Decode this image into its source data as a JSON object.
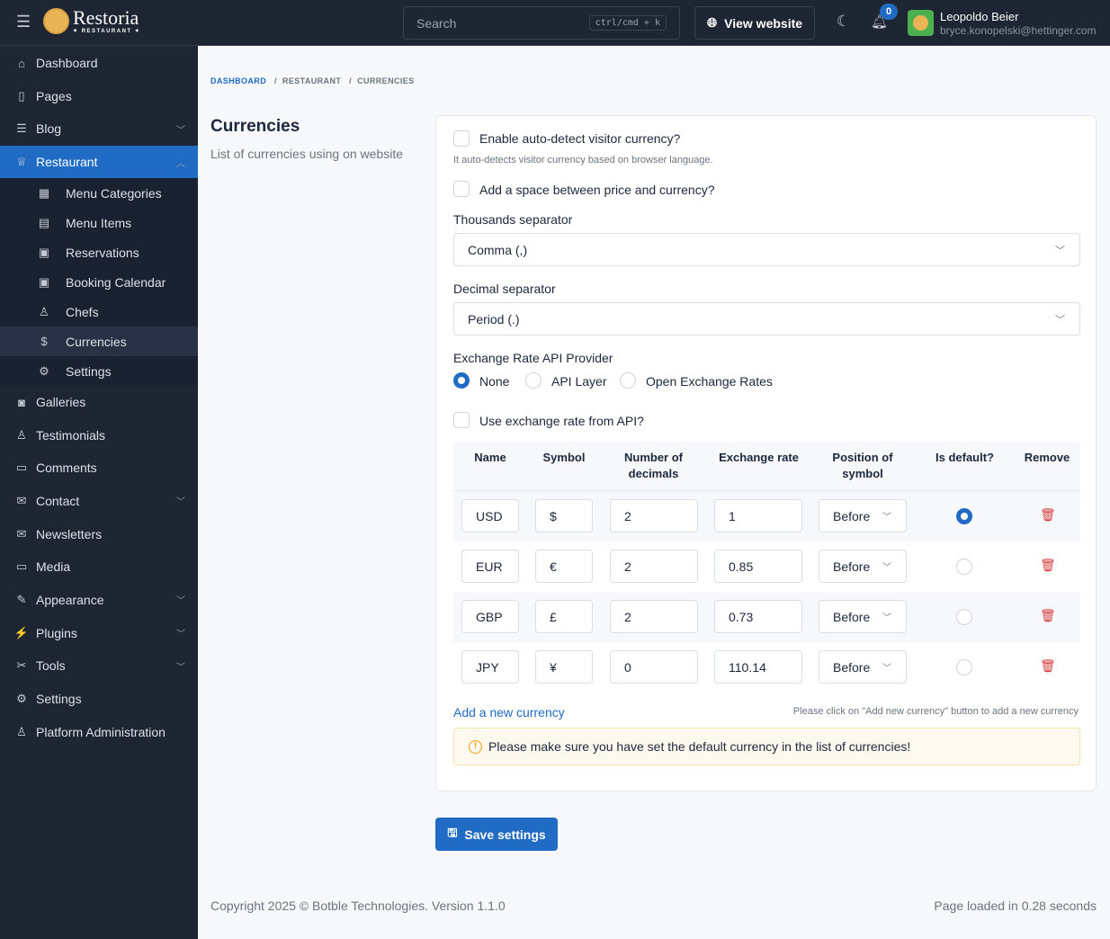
{
  "header": {
    "logo_name": "Restoria",
    "logo_sub": "✦ RESTAURANT ✦",
    "search_placeholder": "Search",
    "search_shortcut": "ctrl/cmd + k",
    "view_website": "View website",
    "notification_count": "0",
    "user_name": "Leopoldo Beier",
    "user_email": "bryce.konopelski@hettinger.com"
  },
  "sidebar": {
    "items": [
      {
        "label": "Dashboard",
        "icon": "home-icon"
      },
      {
        "label": "Pages",
        "icon": "book-icon"
      },
      {
        "label": "Blog",
        "icon": "article-icon",
        "chevron": true
      },
      {
        "label": "Restaurant",
        "icon": "chef-hat-icon",
        "active": true
      }
    ],
    "sub": [
      {
        "label": "Menu Categories",
        "icon": "grid-icon"
      },
      {
        "label": "Menu Items",
        "icon": "clipboard-icon"
      },
      {
        "label": "Reservations",
        "icon": "calendar-icon"
      },
      {
        "label": "Booking Calendar",
        "icon": "calendar-icon"
      },
      {
        "label": "Chefs",
        "icon": "user-icon"
      },
      {
        "label": "Currencies",
        "icon": "dollar-icon",
        "active": true
      },
      {
        "label": "Settings",
        "icon": "gear-icon"
      }
    ],
    "items2": [
      {
        "label": "Galleries",
        "icon": "camera-icon"
      },
      {
        "label": "Testimonials",
        "icon": "users-icon"
      },
      {
        "label": "Comments",
        "icon": "comments-icon"
      },
      {
        "label": "Contact",
        "icon": "mail-icon",
        "chevron": true
      },
      {
        "label": "Newsletters",
        "icon": "mail-icon"
      },
      {
        "label": "Media",
        "icon": "folder-icon"
      },
      {
        "label": "Appearance",
        "icon": "brush-icon",
        "chevron": true
      },
      {
        "label": "Plugins",
        "icon": "plug-icon",
        "chevron": true
      },
      {
        "label": "Tools",
        "icon": "tool-icon",
        "chevron": true
      },
      {
        "label": "Settings",
        "icon": "gear-icon"
      },
      {
        "label": "Platform Administration",
        "icon": "user-cog-icon"
      }
    ]
  },
  "breadcrumb": [
    "DASHBOARD",
    "RESTAURANT",
    "CURRENCIES"
  ],
  "section": {
    "title": "Currencies",
    "description": "List of currencies using on website"
  },
  "form": {
    "auto_detect": "Enable auto-detect visitor currency?",
    "auto_detect_help": "It auto-detects visitor currency based on browser language.",
    "space_label": "Add a space between price and currency?",
    "thousands_label": "Thousands separator",
    "thousands_value": "Comma (,)",
    "decimal_label": "Decimal separator",
    "decimal_value": "Period (.)",
    "api_label": "Exchange Rate API Provider",
    "api_options": [
      "None",
      "API Layer",
      "Open Exchange Rates"
    ],
    "api_selected": "None",
    "use_api": "Use exchange rate from API?"
  },
  "table": {
    "headers": [
      "Name",
      "Symbol",
      "Number of decimals",
      "Exchange rate",
      "Position of symbol",
      "Is default?",
      "Remove"
    ],
    "rows": [
      {
        "name": "USD",
        "symbol": "$",
        "decimals": "2",
        "rate": "1",
        "position": "Before",
        "default": true
      },
      {
        "name": "EUR",
        "symbol": "€",
        "decimals": "2",
        "rate": "0.85",
        "position": "Before",
        "default": false
      },
      {
        "name": "GBP",
        "symbol": "£",
        "decimals": "2",
        "rate": "0.73",
        "position": "Before",
        "default": false
      },
      {
        "name": "JPY",
        "symbol": "¥",
        "decimals": "0",
        "rate": "110.14",
        "position": "Before",
        "default": false
      }
    ]
  },
  "add_currency": "Add a new currency",
  "add_hint": "Please click on \"Add new currency\" button to add a new currency",
  "warning": "Please make sure you have set the default currency in the list of currencies!",
  "save": "Save settings",
  "footer": {
    "copyright": "Copyright 2025 © Botble Technologies. Version 1.1.0",
    "loaded": "Page loaded in 0.28 seconds"
  },
  "colors": {
    "primary": "#206bc4",
    "sidebar": "#1e2633",
    "danger": "#d63939"
  }
}
